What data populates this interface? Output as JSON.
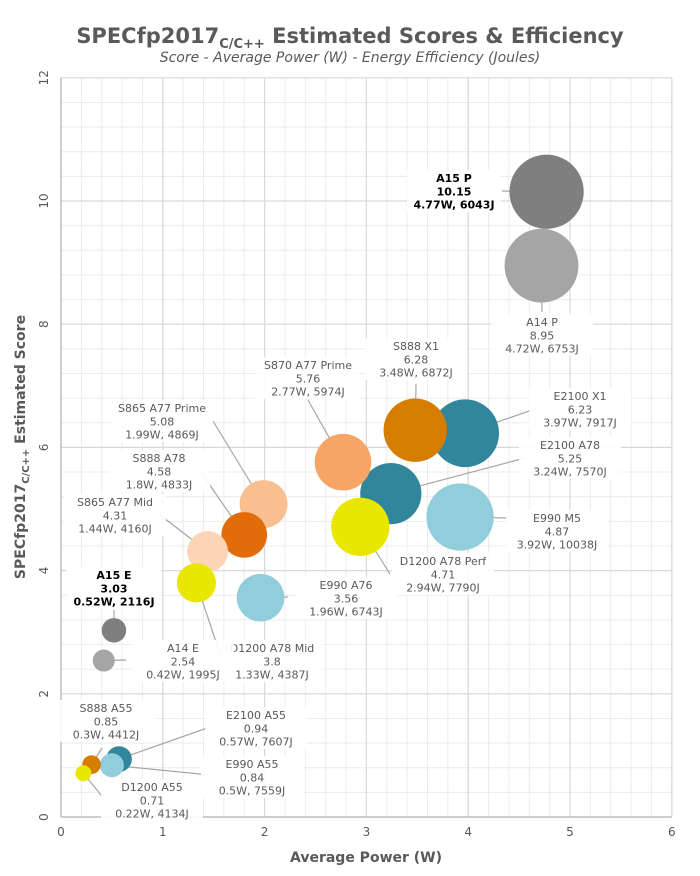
{
  "chart_data": {
    "type": "bubble",
    "title": "SPECfp2017",
    "title_subscript": "C/C++",
    "title_suffix": " Estimated Scores & Efficiency",
    "subtitle": "Score - Average Power (W) - Energy Efficiency (Joules)",
    "xlabel": "Average Power (W)",
    "ylabel": "SPECfp2017",
    "ylabel_subscript": "C/C++",
    "ylabel_suffix": " Estimated Score",
    "xlim": [
      0,
      6
    ],
    "ylim": [
      0,
      12
    ],
    "xticks": [
      "0",
      "1",
      "2",
      "3",
      "4",
      "5",
      "6"
    ],
    "yticks": [
      "0",
      "2",
      "4",
      "6",
      "8",
      "10",
      "12"
    ],
    "grid": true,
    "bubble_size": "average power",
    "points": [
      {
        "name": "A15 P",
        "score": 10.15,
        "power": 4.77,
        "energy": 6043,
        "score_label": "10.15",
        "detail": "4.77W, 6043J",
        "color": "#7f7f7f",
        "bold": true
      },
      {
        "name": "A14 P",
        "score": 8.95,
        "power": 4.72,
        "energy": 6753,
        "score_label": "8.95",
        "detail": "4.72W, 6753J",
        "color": "#a5a5a5",
        "bold": false
      },
      {
        "name": "E990 M5",
        "score": 4.87,
        "power": 3.92,
        "energy": 10038,
        "score_label": "4.87",
        "detail": "3.92W, 10038J",
        "color": "#92cddc",
        "bold": false
      },
      {
        "name": "E2100 X1",
        "score": 6.23,
        "power": 3.97,
        "energy": 7917,
        "score_label": "6.23",
        "detail": "3.97W, 7917J",
        "color": "#31869b",
        "bold": false
      },
      {
        "name": "S888 X1",
        "score": 6.28,
        "power": 3.48,
        "energy": 6872,
        "score_label": "6.28",
        "detail": "3.48W, 6872J",
        "color": "#d67d00",
        "bold": false
      },
      {
        "name": "S870 A77 Prime",
        "score": 5.76,
        "power": 2.77,
        "energy": 5974,
        "score_label": "5.76",
        "detail": "2.77W, 5974J",
        "color": "#f6a565",
        "bold": false
      },
      {
        "name": "E2100 A78",
        "score": 5.25,
        "power": 3.24,
        "energy": 7570,
        "score_label": "5.25",
        "detail": "3.24W, 7570J",
        "color": "#31869b",
        "bold": false
      },
      {
        "name": "D1200 A78 Perf",
        "score": 4.71,
        "power": 2.94,
        "energy": 7790,
        "score_label": "4.71",
        "detail": "2.94W, 7790J",
        "color": "#e9e600",
        "bold": false
      },
      {
        "name": "S865 A77 Prime",
        "score": 5.08,
        "power": 1.99,
        "energy": 4869,
        "score_label": "5.08",
        "detail": "1.99W, 4869J",
        "color": "#f9bf8f",
        "bold": false
      },
      {
        "name": "E990 A76",
        "score": 3.56,
        "power": 1.96,
        "energy": 6743,
        "score_label": "3.56",
        "detail": "1.96W, 6743J",
        "color": "#92cddc",
        "bold": false
      },
      {
        "name": "S888 A78",
        "score": 4.58,
        "power": 1.8,
        "energy": 4833,
        "score_label": "4.58",
        "detail": "1.8W, 4833J",
        "color": "#e36c0a",
        "bold": false
      },
      {
        "name": "S865 A77 Mid",
        "score": 4.31,
        "power": 1.44,
        "energy": 4160,
        "score_label": "4.31",
        "detail": "1.44W, 4160J",
        "color": "#fbd5b5",
        "bold": false
      },
      {
        "name": "D1200 A78 Mid",
        "score": 3.8,
        "power": 1.33,
        "energy": 4387,
        "score_label": "3.8",
        "detail": "1.33W, 4387J",
        "color": "#e9e600",
        "bold": false
      },
      {
        "name": "A15 E",
        "score": 3.03,
        "power": 0.52,
        "energy": 2116,
        "score_label": "3.03",
        "detail": "0.52W, 2116J",
        "color": "#7f7f7f",
        "bold": true
      },
      {
        "name": "A14 E",
        "score": 2.54,
        "power": 0.42,
        "energy": 1995,
        "score_label": "2.54",
        "detail": "0.42W, 1995J",
        "color": "#a5a5a5",
        "bold": false
      },
      {
        "name": "E990 A55",
        "score": 0.84,
        "power": 0.5,
        "energy": 7559,
        "score_label": "0.84",
        "detail": "0.5W, 7559J",
        "color": "#92cddc",
        "bold": false
      },
      {
        "name": "E2100 A55",
        "score": 0.94,
        "power": 0.57,
        "energy": 7607,
        "score_label": "0.94",
        "detail": "0.57W, 7607J",
        "color": "#31869b",
        "bold": false
      },
      {
        "name": "S888 A55",
        "score": 0.85,
        "power": 0.3,
        "energy": 4412,
        "score_label": "0.85",
        "detail": "0.3W, 4412J",
        "color": "#d67d00",
        "bold": false
      },
      {
        "name": "D1200 A55",
        "score": 0.71,
        "power": 0.22,
        "energy": 4134,
        "score_label": "0.71",
        "detail": "0.22W, 4134J",
        "color": "#e9e600",
        "bold": false
      }
    ]
  }
}
